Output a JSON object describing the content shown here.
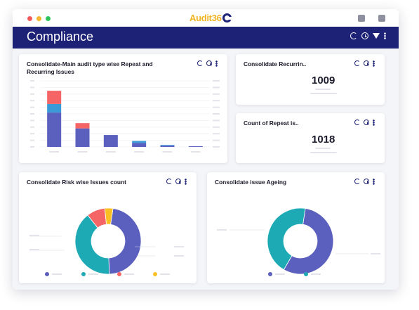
{
  "app": {
    "logo_text": "Audit36",
    "page_title": "Compliance"
  },
  "colors": {
    "navy": "#1d2277",
    "indigo": "#5b5fbd",
    "teal": "#1daab5",
    "coral": "#f56565",
    "yellow": "#fbbf24",
    "sky": "#3b9ad8"
  },
  "cards": {
    "repeat_recurring": {
      "title_line1": "Consolidate-Main audit type wise Repeat and",
      "title_line2": "Recurring Issues"
    },
    "recurring": {
      "title": "Consolidate Recurrin..",
      "value": "1009"
    },
    "repeat": {
      "title": "Count of Repeat is..",
      "value": "1018"
    },
    "risk": {
      "title": "Consolidate Risk wise Issues count"
    },
    "ageing": {
      "title": "Consolidate issue Ageing"
    }
  },
  "chart_data": [
    {
      "type": "bar",
      "stacked": true,
      "categories": [
        "",
        "",
        "",
        "",
        "",
        ""
      ],
      "series": [
        {
          "values": [
            52,
            28,
            18,
            6,
            2,
            1
          ]
        },
        {
          "values": [
            13,
            0,
            0,
            3,
            1,
            0
          ]
        },
        {
          "values": [
            20,
            8,
            0,
            0,
            0,
            0
          ]
        }
      ],
      "ylim": [
        0,
        100
      ]
    },
    {
      "type": "pie",
      "values": [
        47,
        40,
        9,
        4
      ],
      "donut": true
    },
    {
      "type": "pie",
      "values": [
        56,
        44
      ],
      "donut": true
    }
  ]
}
